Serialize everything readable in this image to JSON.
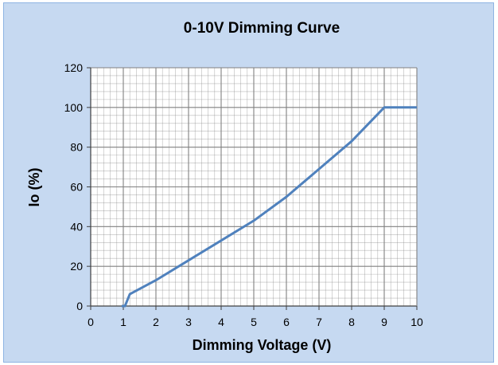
{
  "chart_data": {
    "type": "line",
    "title": "0-10V Dimming Curve",
    "xlabel": "Dimming Voltage (V)",
    "ylabel": "Io (%)",
    "xlim": [
      0,
      10
    ],
    "ylim": [
      0,
      120
    ],
    "x_ticks": [
      "0",
      "1",
      "2",
      "3",
      "4",
      "5",
      "6",
      "7",
      "8",
      "9",
      "10"
    ],
    "y_ticks": [
      "0",
      "20",
      "40",
      "60",
      "80",
      "100",
      "120"
    ],
    "grid": true,
    "legend": "none",
    "series": [
      {
        "x": [
          0.95,
          1.05,
          1.2,
          2,
          3,
          4,
          5,
          6,
          7,
          8,
          9,
          10
        ],
        "y": [
          0,
          0,
          6,
          13,
          23,
          33,
          43,
          55,
          69,
          83,
          100,
          100
        ]
      }
    ],
    "colors": {
      "background": "#c6d9f1",
      "plot_area": "#ffffff",
      "line": "#4f81bd",
      "grid": "#808080"
    }
  }
}
